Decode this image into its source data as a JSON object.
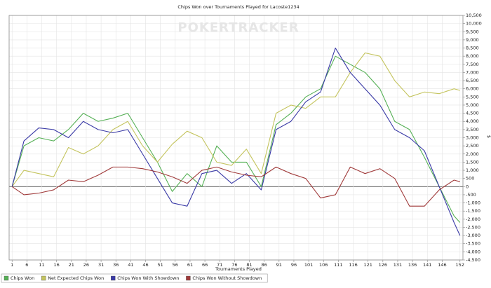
{
  "chart_data": {
    "type": "line",
    "title": "Chips Won over Tournaments Played for Lacoste1234",
    "watermark": "POKERTRACKER",
    "x_label": "Tournaments Played",
    "y_label": "$",
    "x": [
      1,
      5,
      10,
      15,
      20,
      25,
      30,
      35,
      40,
      45,
      50,
      55,
      60,
      65,
      70,
      75,
      80,
      85,
      90,
      95,
      100,
      105,
      110,
      115,
      120,
      125,
      130,
      135,
      140,
      145,
      150,
      152
    ],
    "series": [
      {
        "name": "Chips Won",
        "color": "#55b055",
        "values": [
          0,
          2500,
          3000,
          2800,
          3500,
          4500,
          4000,
          4200,
          4500,
          3000,
          1500,
          -300,
          800,
          0,
          2500,
          1500,
          1500,
          0,
          3800,
          4500,
          5500,
          6000,
          8000,
          7500,
          7000,
          6000,
          4000,
          3500,
          1800,
          0,
          -1800,
          -2200
        ]
      },
      {
        "name": "Net Expected Chips Won",
        "color": "#c4c45e",
        "values": [
          0,
          1000,
          800,
          600,
          2400,
          2000,
          2500,
          3500,
          4000,
          2500,
          1500,
          2600,
          3400,
          3000,
          1500,
          1300,
          2300,
          800,
          4500,
          5000,
          4800,
          5500,
          5500,
          7000,
          8200,
          8000,
          6500,
          5500,
          5800,
          5700,
          6000,
          5900
        ]
      },
      {
        "name": "Chips Won With Showdown",
        "color": "#3a3aa6",
        "values": [
          0,
          2800,
          3600,
          3500,
          3000,
          4000,
          3500,
          3300,
          3500,
          2000,
          500,
          -1000,
          -1200,
          800,
          1000,
          200,
          800,
          -200,
          3500,
          4000,
          5200,
          5800,
          8500,
          7000,
          6000,
          5000,
          3500,
          3000,
          2200,
          0,
          -2200,
          -3000
        ]
      },
      {
        "name": "Chips Won Without Showdown",
        "color": "#a03a3a",
        "values": [
          0,
          -500,
          -400,
          -200,
          400,
          300,
          700,
          1200,
          1200,
          1100,
          900,
          600,
          200,
          1000,
          1200,
          900,
          700,
          600,
          1200,
          800,
          500,
          -700,
          -500,
          1200,
          800,
          1100,
          500,
          -1200,
          -1200,
          -200,
          400,
          300
        ]
      }
    ],
    "xlim": [
      0,
      153
    ],
    "xticks": [
      1,
      6,
      11,
      16,
      21,
      26,
      31,
      36,
      41,
      46,
      51,
      56,
      61,
      66,
      71,
      76,
      81,
      86,
      91,
      96,
      101,
      106,
      111,
      116,
      121,
      126,
      131,
      136,
      141,
      146,
      152
    ],
    "ylim": [
      -4500,
      10500
    ],
    "yticks": [
      {
        "value": -4500,
        "label": "-4,500"
      },
      {
        "value": -4000,
        "label": "-4,000"
      },
      {
        "value": -3500,
        "label": "-3,500"
      },
      {
        "value": -3000,
        "label": "-3,000"
      },
      {
        "value": -2500,
        "label": "-2,500"
      },
      {
        "value": -2000,
        "label": "-2,000"
      },
      {
        "value": -1500,
        "label": "-1,500"
      },
      {
        "value": -1000,
        "label": "-1,000"
      },
      -500,
      0,
      500,
      {
        "value": 1000,
        "label": "1,000"
      },
      {
        "value": 1500,
        "label": "1,500"
      },
      {
        "value": 2000,
        "label": "2,000"
      },
      {
        "value": 2500,
        "label": "2,500"
      },
      {
        "value": 3000,
        "label": "3,000"
      },
      {
        "value": 3500,
        "label": "3,500"
      },
      {
        "value": 4000,
        "label": "4,000"
      },
      {
        "value": 4500,
        "label": "4,500"
      },
      {
        "value": 5000,
        "label": "5,000"
      },
      {
        "value": 5500,
        "label": "5,500"
      },
      {
        "value": 6000,
        "label": "6,000"
      },
      {
        "value": 6500,
        "label": "6,500"
      },
      {
        "value": 7000,
        "label": "7,000"
      },
      {
        "value": 7500,
        "label": "7,500"
      },
      {
        "value": 8000,
        "label": "8,000"
      },
      {
        "value": 8500,
        "label": "8,500"
      },
      {
        "value": 9000,
        "label": "9,000"
      },
      {
        "value": 9500,
        "label": "9,500"
      },
      {
        "value": 10000,
        "label": "10,000"
      },
      {
        "value": 10500,
        "label": "10,500"
      }
    ],
    "grid": true,
    "legend": "bottom-left"
  }
}
